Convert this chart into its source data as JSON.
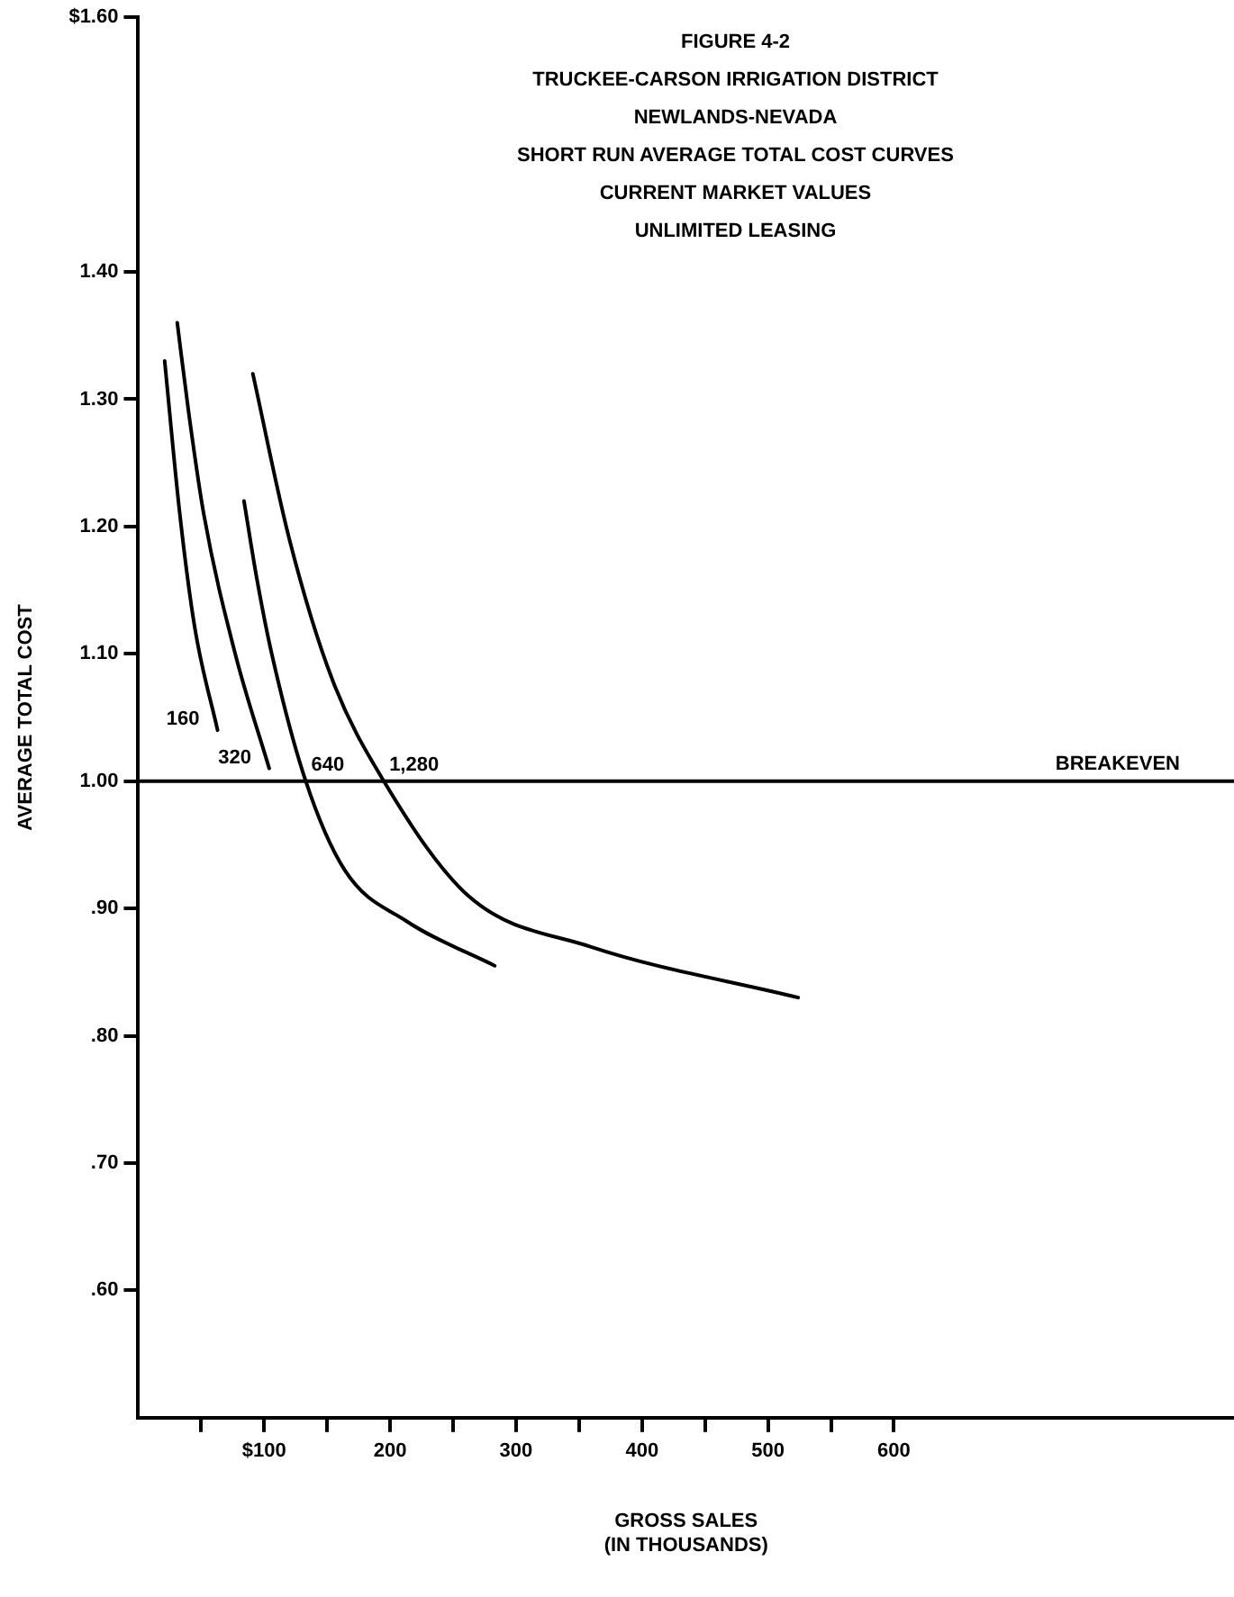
{
  "chart_data": {
    "type": "line",
    "title": "FIGURE 4-2",
    "subtitle": "TRUCKEE-CARSON IRRIGATION DISTRICT\nNEWLANDS-NEVADA\nSHORT RUN AVERAGE TOTAL COST CURVES\nCURRENT MARKET VALUES\nUNLIMITED LEASING",
    "xlabel": "GROSS SALES\n(IN THOUSANDS)",
    "ylabel": "AVERAGE TOTAL COST",
    "xlim": [
      0,
      870
    ],
    "xticks": [
      {
        "value": 50,
        "label": null
      },
      {
        "value": 100,
        "label": "$100"
      },
      {
        "value": 150,
        "label": null
      },
      200,
      {
        "value": 250,
        "label": null
      },
      300,
      {
        "value": 350,
        "label": null
      },
      400,
      {
        "value": 450,
        "label": null
      },
      500,
      {
        "value": 550,
        "label": null
      },
      600
    ],
    "ylim": [
      0.5,
      1.6
    ],
    "yticks": [
      {
        "value": 0.6,
        "label": ".60"
      },
      {
        "value": 0.7,
        "label": ".70"
      },
      {
        "value": 0.8,
        "label": ".80"
      },
      {
        "value": 0.9,
        "label": ".90"
      },
      {
        "value": 1.0,
        "label": "1.00"
      },
      {
        "value": 1.1,
        "label": "1.10"
      },
      {
        "value": 1.2,
        "label": "1.20"
      },
      {
        "value": 1.3,
        "label": "1.30"
      },
      {
        "value": 1.4,
        "label": "1.40"
      },
      {
        "value": 1.6,
        "label": "$1.60"
      }
    ],
    "grid": false,
    "legend": false,
    "marker": "none",
    "line_style": "solid",
    "ref_lines": [
      {
        "axis": "y",
        "value": 1.0,
        "label": "BREAKEVEN",
        "color": "#000000"
      }
    ],
    "series": [
      {
        "name": "160",
        "color": "#000000",
        "x": [
          21,
          33,
          45,
          63
        ],
        "values": [
          1.33,
          1.21,
          1.12,
          1.04
        ]
      },
      {
        "name": "320",
        "color": "#000000",
        "x": [
          31,
          40,
          52,
          77,
          104
        ],
        "values": [
          1.36,
          1.29,
          1.21,
          1.1,
          1.01
        ]
      },
      {
        "name": "640",
        "color": "#000000",
        "x": [
          84,
          94,
          106,
          133,
          164,
          213,
          283
        ],
        "values": [
          1.22,
          1.16,
          1.1,
          1.0,
          0.93,
          0.89,
          0.855
        ]
      },
      {
        "name": "1,280",
        "color": "#000000",
        "x": [
          91,
          120,
          154,
          195,
          262,
          359,
          524
        ],
        "values": [
          1.32,
          1.19,
          1.08,
          1.0,
          0.91,
          0.87,
          0.83
        ]
      }
    ]
  }
}
